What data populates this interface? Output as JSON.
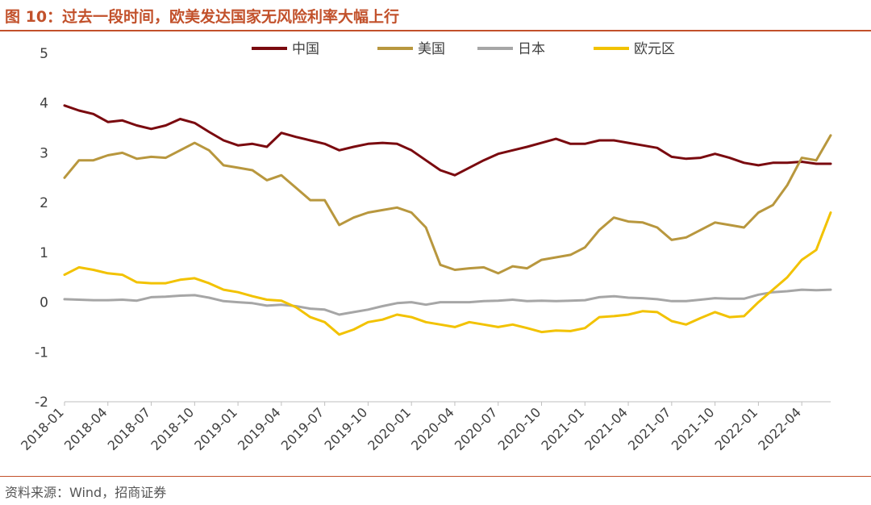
{
  "header": {
    "title": "图 10：过去一段时间，欧美发达国家无风险利率大幅上行"
  },
  "footer": {
    "source": "资料来源：Wind，招商证券"
  },
  "colors": {
    "accent": "#c2512b",
    "china": "#7a0a0f",
    "usa": "#b8973e",
    "japan": "#a6a6a6",
    "euro": "#f2c200"
  },
  "chart_data": {
    "type": "line",
    "x_unit": "month",
    "x": [
      "2018-01",
      "2018-02",
      "2018-03",
      "2018-04",
      "2018-05",
      "2018-06",
      "2018-07",
      "2018-08",
      "2018-09",
      "2018-10",
      "2018-11",
      "2018-12",
      "2019-01",
      "2019-02",
      "2019-03",
      "2019-04",
      "2019-05",
      "2019-06",
      "2019-07",
      "2019-08",
      "2019-09",
      "2019-10",
      "2019-11",
      "2019-12",
      "2020-01",
      "2020-02",
      "2020-03",
      "2020-04",
      "2020-05",
      "2020-06",
      "2020-07",
      "2020-08",
      "2020-09",
      "2020-10",
      "2020-11",
      "2020-12",
      "2021-01",
      "2021-02",
      "2021-03",
      "2021-04",
      "2021-05",
      "2021-06",
      "2021-07",
      "2021-08",
      "2021-09",
      "2021-10",
      "2021-11",
      "2021-12",
      "2022-01",
      "2022-02",
      "2022-03",
      "2022-04",
      "2022-05",
      "2022-06"
    ],
    "x_tick_labels": [
      "2018-01",
      "2018-04",
      "2018-07",
      "2018-10",
      "2019-01",
      "2019-04",
      "2019-07",
      "2019-10",
      "2020-01",
      "2020-04",
      "2020-07",
      "2020-10",
      "2021-01",
      "2021-04",
      "2021-07",
      "2021-10",
      "2022-01",
      "2022-04"
    ],
    "y_ticks": [
      -2,
      -1,
      0,
      1,
      2,
      3,
      4,
      5
    ],
    "ylim": [
      -2,
      5
    ],
    "grid": false,
    "legend_position": "top-center",
    "series": [
      {
        "name": "中国",
        "color_key": "china",
        "values": [
          3.95,
          3.85,
          3.78,
          3.62,
          3.65,
          3.55,
          3.48,
          3.55,
          3.68,
          3.6,
          3.42,
          3.25,
          3.15,
          3.18,
          3.12,
          3.4,
          3.32,
          3.25,
          3.18,
          3.05,
          3.12,
          3.18,
          3.2,
          3.18,
          3.05,
          2.85,
          2.65,
          2.55,
          2.7,
          2.85,
          2.98,
          3.05,
          3.12,
          3.2,
          3.28,
          3.18,
          3.18,
          3.25,
          3.25,
          3.2,
          3.15,
          3.1,
          2.92,
          2.88,
          2.9,
          2.98,
          2.9,
          2.8,
          2.75,
          2.8,
          2.8,
          2.82,
          2.78,
          2.78
        ]
      },
      {
        "name": "美国",
        "color_key": "usa",
        "values": [
          2.5,
          2.85,
          2.85,
          2.95,
          3.0,
          2.88,
          2.92,
          2.9,
          3.05,
          3.2,
          3.05,
          2.75,
          2.7,
          2.65,
          2.45,
          2.55,
          2.3,
          2.05,
          2.05,
          1.55,
          1.7,
          1.8,
          1.85,
          1.9,
          1.8,
          1.5,
          0.75,
          0.65,
          0.68,
          0.7,
          0.58,
          0.72,
          0.68,
          0.85,
          0.9,
          0.95,
          1.1,
          1.45,
          1.7,
          1.62,
          1.6,
          1.5,
          1.25,
          1.3,
          1.45,
          1.6,
          1.55,
          1.5,
          1.8,
          1.95,
          2.35,
          2.9,
          2.85,
          3.35
        ]
      },
      {
        "name": "日本",
        "color_key": "japan",
        "values": [
          0.06,
          0.05,
          0.04,
          0.04,
          0.05,
          0.03,
          0.1,
          0.11,
          0.13,
          0.14,
          0.09,
          0.02,
          0.0,
          -0.02,
          -0.07,
          -0.05,
          -0.08,
          -0.13,
          -0.15,
          -0.25,
          -0.2,
          -0.15,
          -0.08,
          -0.02,
          0.0,
          -0.05,
          0.0,
          0.0,
          0.0,
          0.02,
          0.03,
          0.05,
          0.02,
          0.03,
          0.02,
          0.03,
          0.04,
          0.1,
          0.12,
          0.09,
          0.08,
          0.06,
          0.02,
          0.02,
          0.05,
          0.08,
          0.07,
          0.07,
          0.15,
          0.2,
          0.22,
          0.25,
          0.24,
          0.25
        ]
      },
      {
        "name": "欧元区",
        "color_key": "euro",
        "values": [
          0.55,
          0.7,
          0.65,
          0.58,
          0.55,
          0.4,
          0.38,
          0.38,
          0.45,
          0.48,
          0.38,
          0.25,
          0.2,
          0.12,
          0.05,
          0.03,
          -0.1,
          -0.3,
          -0.4,
          -0.65,
          -0.55,
          -0.4,
          -0.35,
          -0.25,
          -0.3,
          -0.4,
          -0.45,
          -0.5,
          -0.4,
          -0.45,
          -0.5,
          -0.45,
          -0.52,
          -0.6,
          -0.57,
          -0.58,
          -0.52,
          -0.3,
          -0.28,
          -0.25,
          -0.18,
          -0.2,
          -0.38,
          -0.45,
          -0.32,
          -0.2,
          -0.3,
          -0.28,
          0.0,
          0.25,
          0.5,
          0.85,
          1.05,
          1.8
        ]
      }
    ]
  }
}
